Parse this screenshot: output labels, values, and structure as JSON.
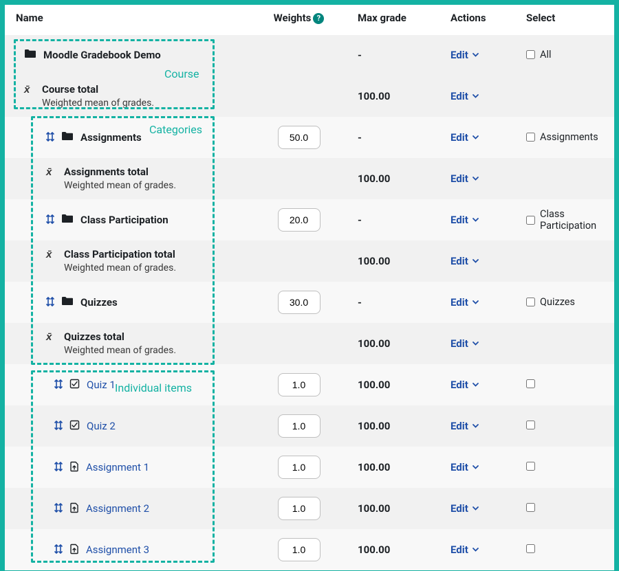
{
  "colors": {
    "frame": "#14b2a3",
    "link": "#1f4fa8",
    "text": "#1d2125",
    "row_shade": "#f1f1f1",
    "row_plain": "#f8f8f8",
    "input_border": "#bfbfbf",
    "help_bg": "#00857d"
  },
  "header": {
    "name": "Name",
    "weights": "Weights",
    "max": "Max grade",
    "actions": "Actions",
    "select": "Select"
  },
  "edit_label": "Edit",
  "select_all_label": "All",
  "annotations": {
    "course": "Course",
    "categories": "Categories",
    "items": "Individual items"
  },
  "rows": [
    {
      "id": "course-root",
      "indent": 0,
      "shade": true,
      "icon": "folder",
      "move": false,
      "title": "Moodle Gradebook Demo",
      "max": "-",
      "edit": true,
      "select": "All"
    },
    {
      "id": "course-total",
      "indent": 0,
      "shade": true,
      "icon": "xbar",
      "move": false,
      "title": "Course total",
      "sub": "Weighted mean of grades.",
      "max": "100.00",
      "edit": true
    },
    {
      "id": "cat-asg",
      "indent": 1,
      "shade": false,
      "icon": "folder",
      "move": true,
      "title": "Assignments",
      "weight": "50.0",
      "max": "-",
      "edit": true,
      "select": "Assignments"
    },
    {
      "id": "cat-asg-tot",
      "indent": 1,
      "shade": true,
      "icon": "xbar",
      "move": false,
      "title": "Assignments total",
      "sub": "Weighted mean of grades.",
      "max": "100.00",
      "edit": true
    },
    {
      "id": "cat-cp",
      "indent": 1,
      "shade": false,
      "icon": "folder",
      "move": true,
      "title": "Class Participation",
      "weight": "20.0",
      "max": "-",
      "edit": true,
      "select": "Class Participation"
    },
    {
      "id": "cat-cp-tot",
      "indent": 1,
      "shade": true,
      "icon": "xbar",
      "move": false,
      "title": "Class Participation total",
      "sub": "Weighted mean of grades.",
      "max": "100.00",
      "edit": true
    },
    {
      "id": "cat-qz",
      "indent": 1,
      "shade": false,
      "icon": "folder",
      "move": true,
      "title": "Quizzes",
      "weight": "30.0",
      "max": "-",
      "edit": true,
      "select": "Quizzes"
    },
    {
      "id": "cat-qz-tot",
      "indent": 1,
      "shade": true,
      "icon": "xbar",
      "move": false,
      "title": "Quizzes total",
      "sub": "Weighted mean of grades.",
      "max": "100.00",
      "edit": true
    },
    {
      "id": "quiz1",
      "indent": 2,
      "shade": false,
      "icon": "quiz",
      "move": true,
      "link": true,
      "title": "Quiz 1",
      "weight": "1.0",
      "max": "100.00",
      "edit": true,
      "checkbox": true
    },
    {
      "id": "quiz2",
      "indent": 2,
      "shade": true,
      "icon": "quiz",
      "move": true,
      "link": true,
      "title": "Quiz 2",
      "weight": "1.0",
      "max": "100.00",
      "edit": true,
      "checkbox": true
    },
    {
      "id": "asg1",
      "indent": 2,
      "shade": false,
      "icon": "assign",
      "move": true,
      "link": true,
      "title": "Assignment 1",
      "weight": "1.0",
      "max": "100.00",
      "edit": true,
      "checkbox": true
    },
    {
      "id": "asg2",
      "indent": 2,
      "shade": true,
      "icon": "assign",
      "move": true,
      "link": true,
      "title": "Assignment 2",
      "weight": "1.0",
      "max": "100.00",
      "edit": true,
      "checkbox": true
    },
    {
      "id": "asg3",
      "indent": 2,
      "shade": false,
      "icon": "assign",
      "move": true,
      "link": true,
      "title": "Assignment 3",
      "weight": "1.0",
      "max": "100.00",
      "edit": true,
      "checkbox": true
    }
  ]
}
